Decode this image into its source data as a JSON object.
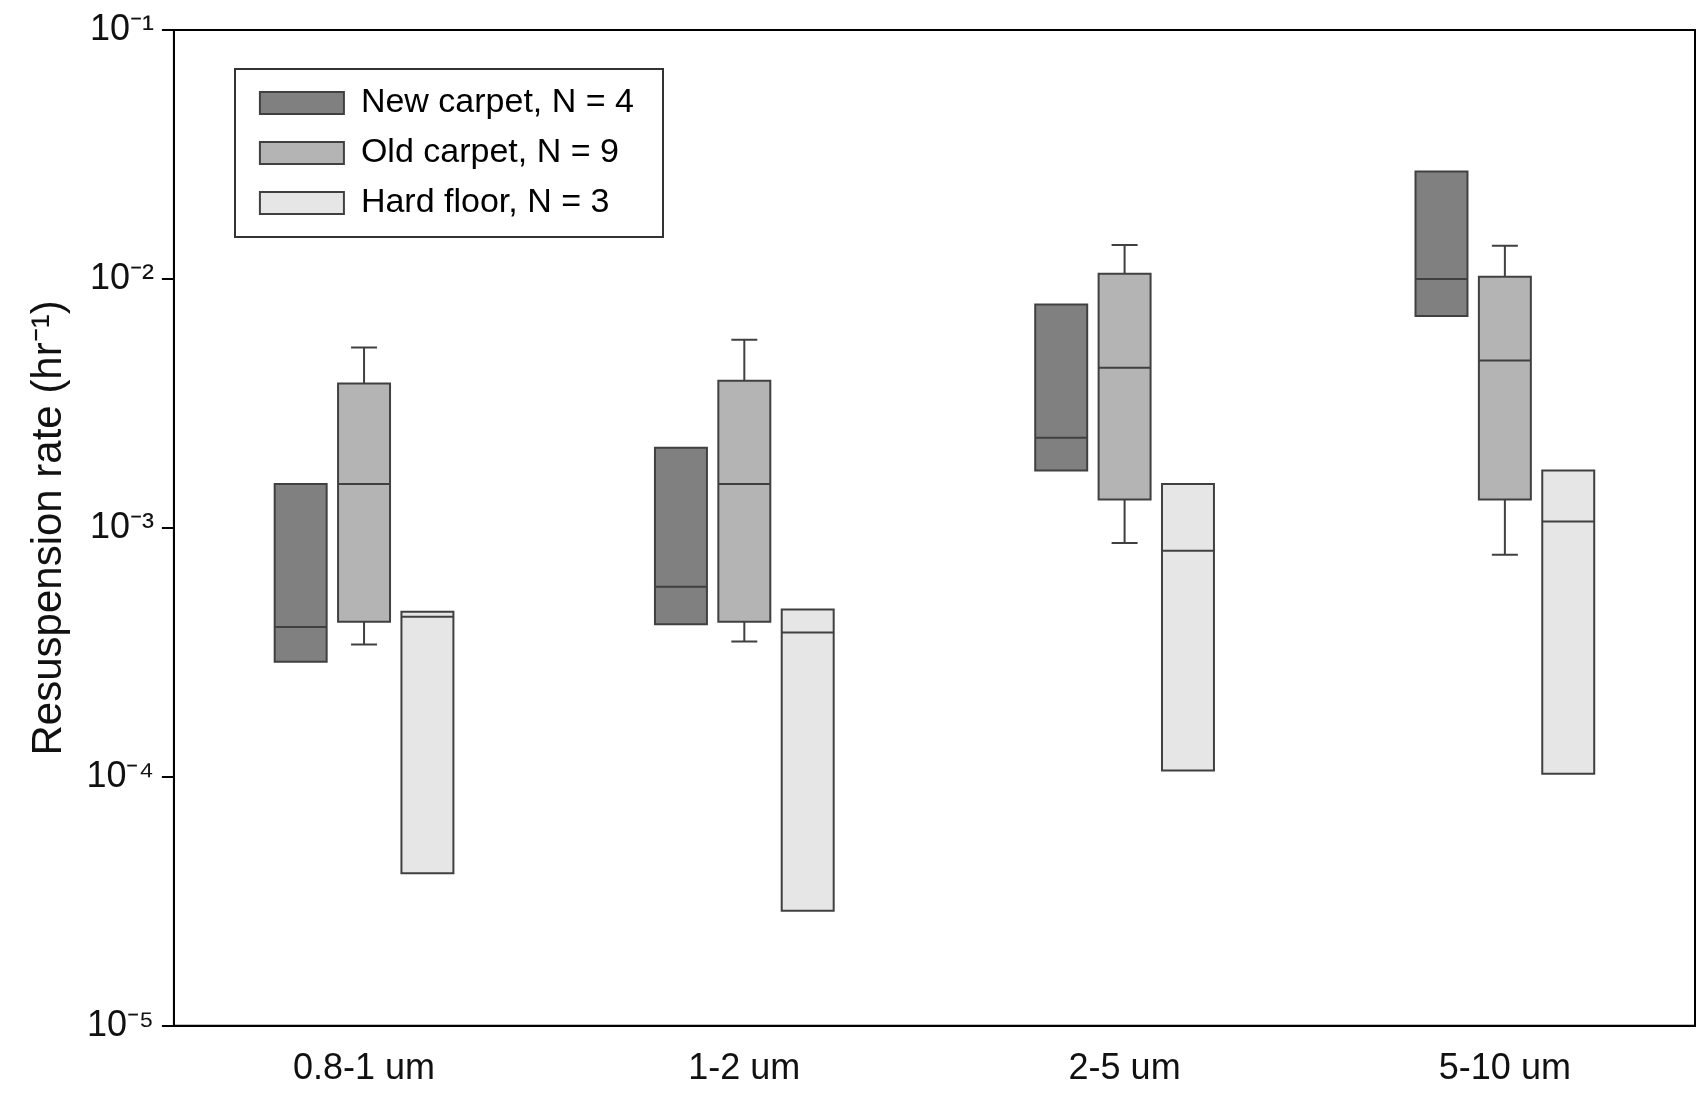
{
  "chart_data": {
    "type": "box",
    "ylabel": "Resuspension rate (hr⁻¹)",
    "categories": [
      "0.8-1 um",
      "1-2 um",
      "2-5 um",
      "5-10 um"
    ],
    "log": "y",
    "ylim": [
      1e-05,
      0.1
    ],
    "yticks": [
      {
        "value": 0.1,
        "label": "10⁻¹"
      },
      {
        "value": 0.01,
        "label": "10⁻²"
      },
      {
        "value": 0.001,
        "label": "10⁻³"
      },
      {
        "value": 0.0001,
        "label": "10⁻⁴"
      },
      {
        "value": 1e-05,
        "label": "10⁻⁵"
      }
    ],
    "grid": false,
    "legend": "top left",
    "series": [
      {
        "name": "New carpet, N = 4",
        "color": "#808080",
        "boxes": [
          {
            "low": 0.00029,
            "q1": 0.00029,
            "median": 0.0004,
            "q3": 0.0015,
            "high": 0.0015
          },
          {
            "low": 0.00041,
            "q1": 0.00041,
            "median": 0.00058,
            "q3": 0.0021,
            "high": 0.0021
          },
          {
            "low": 0.0017,
            "q1": 0.0017,
            "median": 0.0023,
            "q3": 0.0079,
            "high": 0.0079
          },
          {
            "low": 0.0071,
            "q1": 0.0071,
            "median": 0.01,
            "q3": 0.027,
            "high": 0.027
          }
        ]
      },
      {
        "name": "Old carpet, N = 9",
        "color": "#b4b4b4",
        "boxes": [
          {
            "low": 0.00034,
            "q1": 0.00042,
            "median": 0.0015,
            "q3": 0.0038,
            "high": 0.0053
          },
          {
            "low": 0.00035,
            "q1": 0.00042,
            "median": 0.0015,
            "q3": 0.0039,
            "high": 0.0057
          },
          {
            "low": 0.00087,
            "q1": 0.0013,
            "median": 0.0044,
            "q3": 0.0105,
            "high": 0.0137
          },
          {
            "low": 0.00078,
            "q1": 0.0013,
            "median": 0.0047,
            "q3": 0.0102,
            "high": 0.0136
          }
        ]
      },
      {
        "name": "Hard floor, N = 3",
        "color": "#e6e6e6",
        "boxes": [
          {
            "low": 4.1e-05,
            "q1": 4.1e-05,
            "median": 0.00044,
            "q3": 0.00046,
            "high": 0.00046
          },
          {
            "low": 2.9e-05,
            "q1": 2.9e-05,
            "median": 0.00038,
            "q3": 0.00047,
            "high": 0.00047
          },
          {
            "low": 0.000106,
            "q1": 0.000106,
            "median": 0.00081,
            "q3": 0.0015,
            "high": 0.0015
          },
          {
            "low": 0.000103,
            "q1": 0.000103,
            "median": 0.00106,
            "q3": 0.0017,
            "high": 0.0017
          }
        ]
      }
    ]
  }
}
